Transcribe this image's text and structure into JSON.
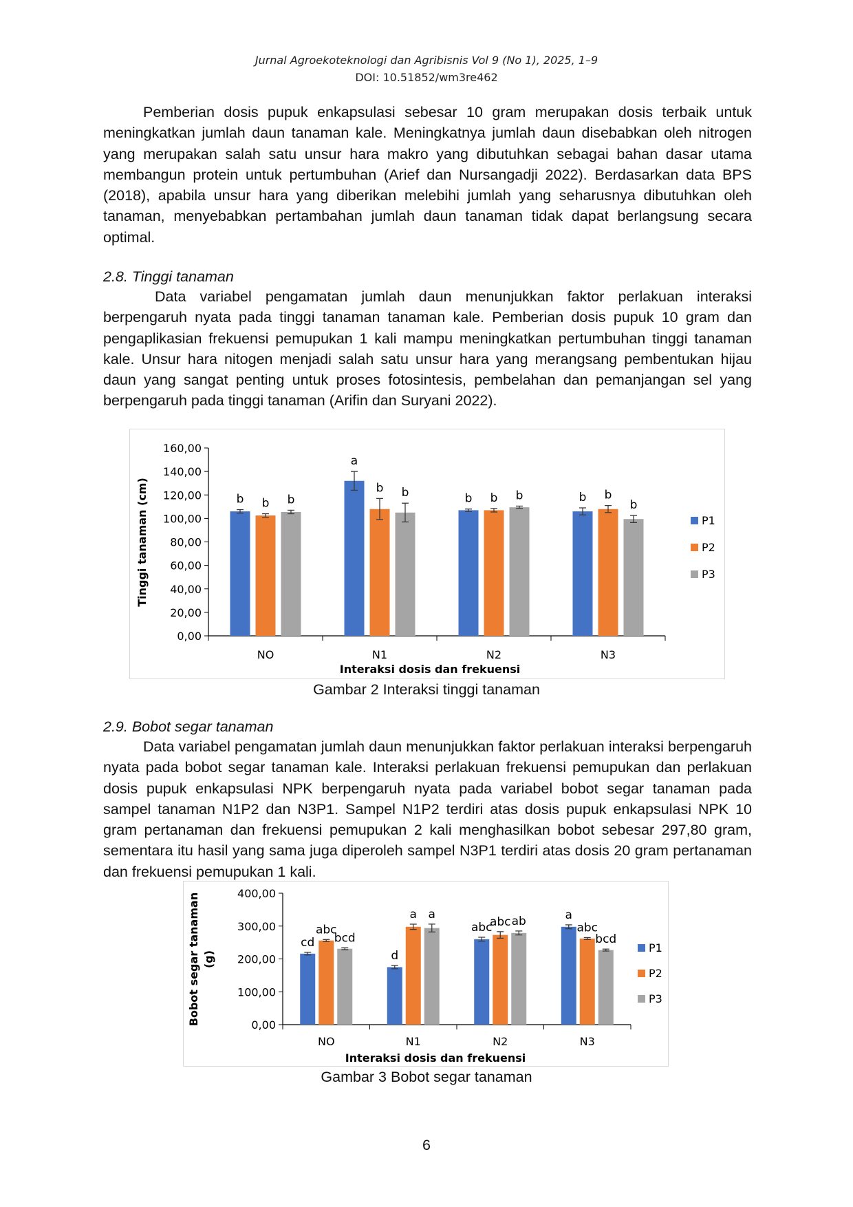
{
  "header": {
    "journal": "Jurnal Agroekoteknologi dan Agribisnis Vol 9 (No 1), 2025, 1–9",
    "doi": "DOI: 10.51852/wm3re462"
  },
  "paragraphs": {
    "p1": "Pemberian dosis pupuk enkapsulasi sebesar 10 gram merupakan dosis terbaik untuk meningkatkan jumlah daun tanaman kale. Meningkatnya jumlah daun disebabkan oleh nitrogen yang merupakan salah satu unsur hara makro yang dibutuhkan sebagai bahan dasar utama membangun protein untuk pertumbuhan (Arief dan Nursangadji 2022). Berdasarkan data BPS (2018), apabila unsur hara yang diberikan melebihi jumlah yang seharusnya dibutuhkan oleh tanaman, menyebabkan pertambahan jumlah daun tanaman tidak dapat berlangsung secara optimal.",
    "p2": "Data variabel pengamatan jumlah daun menunjukkan faktor perlakuan interaksi berpengaruh nyata pada tinggi tanaman tanaman kale. Pemberian dosis pupuk 10 gram dan pengaplikasian frekuensi pemupukan 1 kali mampu meningkatkan pertumbuhan tinggi tanaman kale. Unsur hara nitogen menjadi salah satu unsur hara yang merangsang pembentukan hijau daun yang sangat penting untuk proses fotosintesis, pembelahan dan pemanjangan sel yang berpengaruh pada tinggi tanaman (Arifin dan Suryani 2022).",
    "p3": "Data variabel pengamatan jumlah daun menunjukkan faktor perlakuan interaksi berpengaruh nyata pada bobot segar tanaman kale. Interaksi perlakuan frekuensi pemupukan dan perlakuan dosis pupuk enkapsulasi NPK berpengaruh nyata pada variabel bobot segar tanaman pada sampel tanaman N1P2 dan N3P1. Sampel N1P2 terdiri atas dosis pupuk enkapsulasi NPK 10 gram pertanaman dan frekuensi pemupukan 2 kali menghasilkan bobot sebesar 297,80 gram, sementara itu hasil yang sama juga diperoleh sampel N3P1 terdiri atas dosis 20 gram pertanaman dan frekuensi pemupukan 1 kali."
  },
  "sections": {
    "s28": "2.8. Tinggi tanaman",
    "s29": "2.9. Bobot segar tanaman"
  },
  "captions": {
    "fig2": "Gambar 2 Interaksi tinggi tanaman",
    "fig3": "Gambar 3 Bobot segar tanaman"
  },
  "page_number": "6",
  "colors": {
    "P1": "#4472c4",
    "P2": "#ed7d31",
    "P3": "#a5a5a5"
  },
  "chart_data": [
    {
      "type": "bar",
      "title": "",
      "xlabel": "Interaksi dosis dan frekuensi",
      "ylabel": "Tinggi tanaman (cm)",
      "ylim": [
        0,
        160
      ],
      "yticks": [
        "0,00",
        "20,00",
        "40,00",
        "60,00",
        "80,00",
        "100,00",
        "120,00",
        "140,00",
        "160,00"
      ],
      "categories": [
        "NO",
        "N1",
        "N2",
        "N3"
      ],
      "legend_position": "right",
      "grid": false,
      "series": [
        {
          "name": "P1",
          "values": [
            106,
            132,
            107,
            106
          ],
          "errors": [
            1.5,
            8,
            1,
            3
          ],
          "labels": [
            "b",
            "a",
            "b",
            "b"
          ]
        },
        {
          "name": "P2",
          "values": [
            102.5,
            108,
            107,
            108
          ],
          "errors": [
            1.5,
            9,
            1.5,
            3
          ],
          "labels": [
            "b",
            "b",
            "b",
            "b"
          ]
        },
        {
          "name": "P3",
          "values": [
            105.5,
            105,
            109.5,
            99.5
          ],
          "errors": [
            1.5,
            8,
            1,
            3
          ],
          "labels": [
            "b",
            "b",
            "b",
            "b"
          ]
        }
      ]
    },
    {
      "type": "bar",
      "title": "",
      "xlabel": "Interaksi dosis dan frekuensi",
      "ylabel": "Bobot segar tanaman (g)",
      "ylim": [
        0,
        400
      ],
      "yticks": [
        "0,00",
        "100,00",
        "200,00",
        "300,00",
        "400,00"
      ],
      "categories": [
        "NO",
        "N1",
        "N2",
        "N3"
      ],
      "legend_position": "right",
      "grid": false,
      "series": [
        {
          "name": "P1",
          "values": [
            216,
            175,
            260,
            297.8
          ],
          "errors": [
            4,
            5,
            6,
            6
          ],
          "labels": [
            "cd",
            "d",
            "abc",
            "a"
          ]
        },
        {
          "name": "P2",
          "values": [
            256,
            297.8,
            273,
            262
          ],
          "errors": [
            3,
            8,
            10,
            3
          ],
          "labels": [
            "abc",
            "a",
            "abc",
            "abc"
          ]
        },
        {
          "name": "P3",
          "values": [
            231,
            294,
            279,
            227
          ],
          "errors": [
            3,
            12,
            6,
            3
          ],
          "labels": [
            "bcd",
            "a",
            "ab",
            "bcd"
          ]
        }
      ]
    }
  ]
}
